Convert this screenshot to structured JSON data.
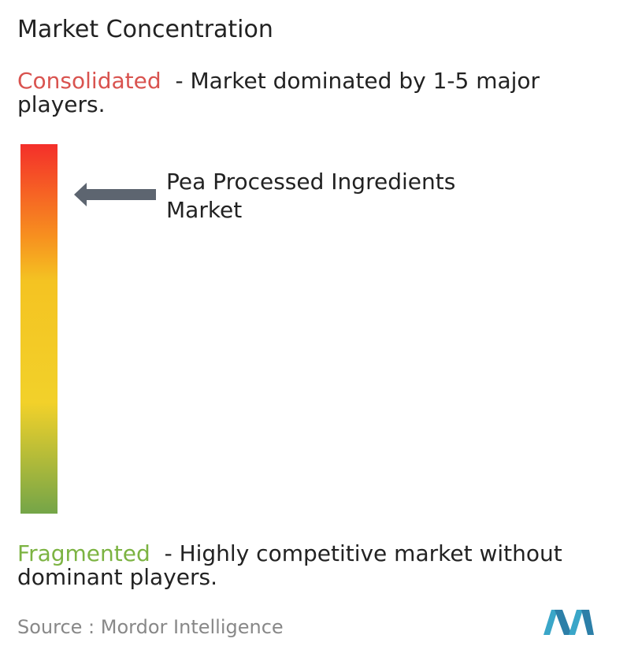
{
  "title": "Market Concentration",
  "consolidated": {
    "label": "Consolidated",
    "description": "- Market dominated by 1-5 major players."
  },
  "marker": {
    "label": "Pea Processed Ingredients Market"
  },
  "fragmented": {
    "label": "Fragmented",
    "description": "- Highly competitive market without dominant players."
  },
  "source": "Source :  Mordor Intelligence"
}
